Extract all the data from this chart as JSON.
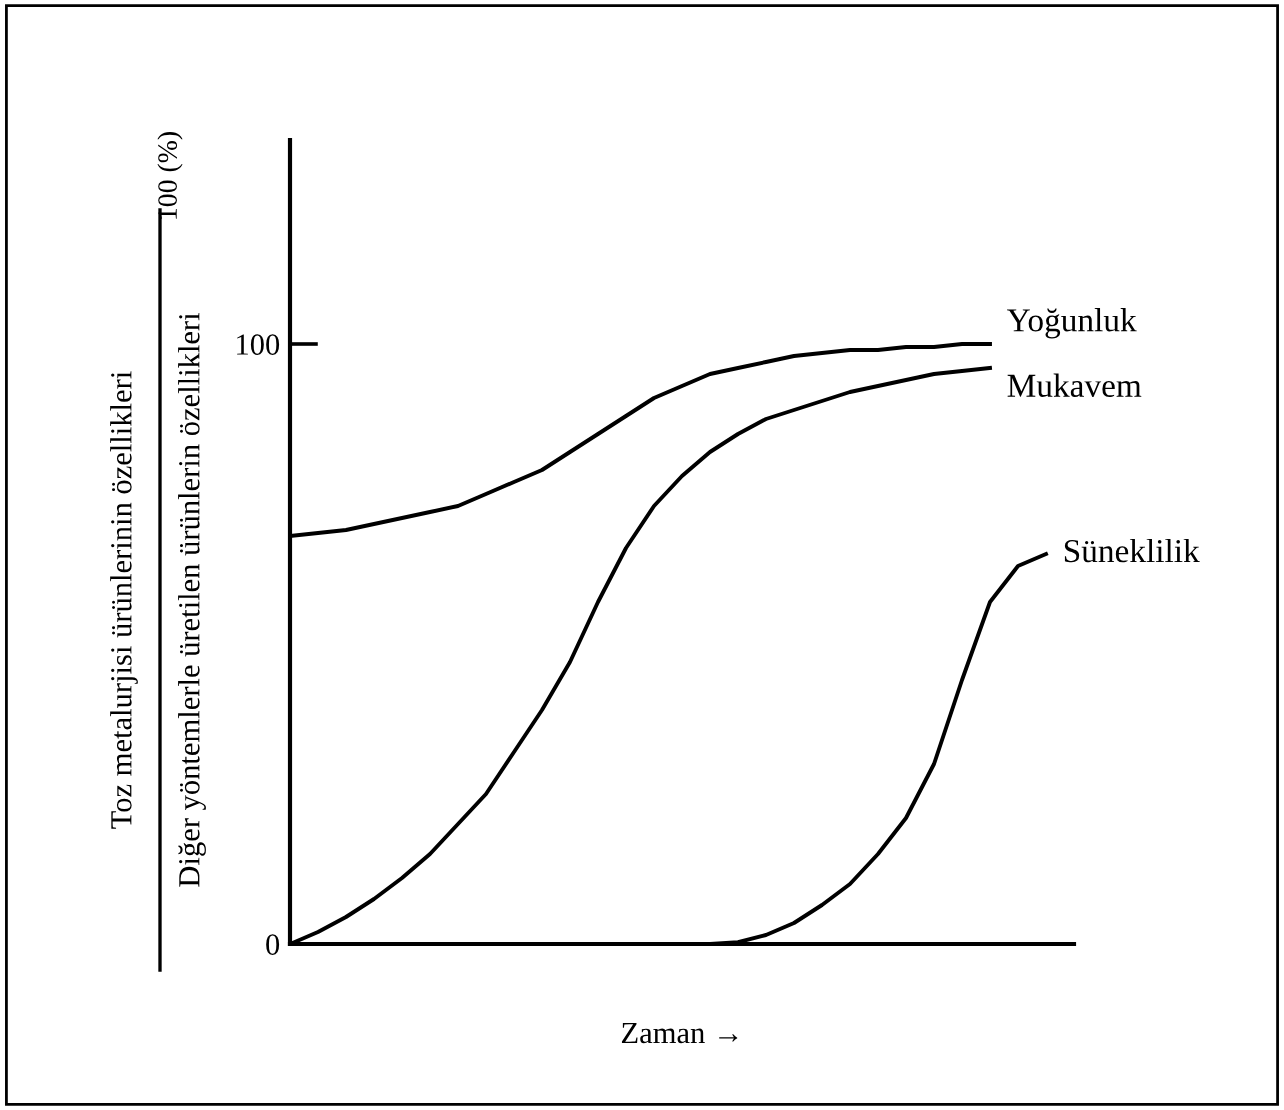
{
  "chart_data": {
    "type": "line",
    "ylabel": "Toz metalurjisi ürünlerinin özellikleri\nDiğer yöntemlerle üretilen ürünlerin özellikleri",
    "xlabel": "Zaman →",
    "annotations": [
      "100 (%)"
    ],
    "categories": [
      null,
      null,
      null,
      null,
      null,
      null,
      null,
      null,
      null,
      null,
      null,
      null,
      null,
      null,
      null,
      null,
      null,
      null,
      null,
      null,
      null,
      null,
      null,
      null,
      null,
      null,
      null,
      null,
      null
    ],
    "series": [
      {
        "name": "Yoğunluk",
        "color": "#000000",
        "values": [
          68,
          68.5,
          69,
          70,
          71,
          72,
          73,
          75,
          77,
          79,
          82,
          85,
          88,
          91,
          93,
          95,
          96,
          97,
          98,
          98.5,
          99,
          99,
          99.5,
          99.5,
          100,
          100,
          null,
          null,
          null
        ]
      },
      {
        "name": "Mukavem",
        "color": "#000000",
        "values": [
          0,
          2,
          4.5,
          7.5,
          11,
          15,
          20,
          25,
          32,
          39,
          47,
          57,
          66,
          73,
          78,
          82,
          85,
          87.5,
          89,
          90.5,
          92,
          93,
          94,
          95,
          95.5,
          96,
          null,
          null,
          null
        ]
      },
      {
        "name": "Süneklilik",
        "color": "#000000",
        "values": [
          null,
          null,
          null,
          null,
          null,
          null,
          null,
          null,
          null,
          null,
          null,
          null,
          null,
          null,
          null,
          0,
          0.3,
          1.5,
          3.5,
          6.5,
          10,
          15,
          21,
          30,
          44,
          57,
          63,
          65,
          null
        ]
      }
    ],
    "ylim": [
      0,
      134
    ],
    "yticks": [
      0,
      100
    ],
    "grid": false,
    "legend": false,
    "marker": "none",
    "line_style": "solid",
    "tick_labels": "y"
  }
}
